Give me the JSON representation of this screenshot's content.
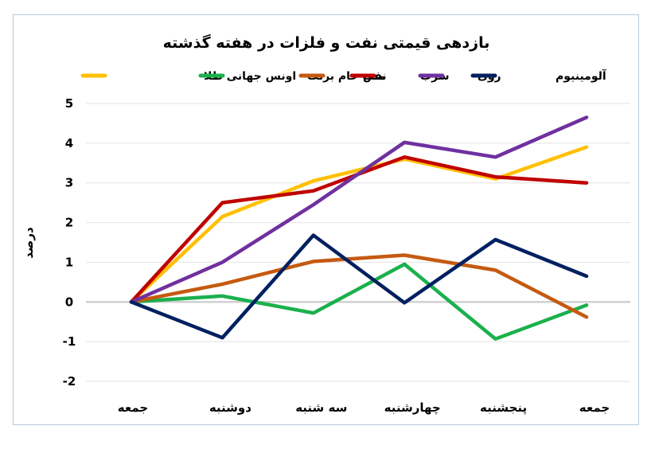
{
  "chart_data": {
    "type": "line",
    "title": "بازدهی قیمتی نفت و فلزات در هفته گذشته",
    "ylabel": "درصد",
    "xlabel": "",
    "categories": [
      "جمعه",
      "دوشنبه",
      "سه شنبه",
      "چهارشنبه",
      "پنجشنبه",
      "جمعه"
    ],
    "ylim": [
      -2,
      5
    ],
    "yticks": [
      5,
      4,
      3,
      2,
      1,
      0,
      -1,
      -2
    ],
    "ytick_labels": [
      "5",
      "4",
      "3",
      "2",
      "1",
      "0",
      "-1",
      "-2"
    ],
    "legend_position": "top",
    "gridlines": true,
    "series": [
      {
        "name": "اونس جهانی طلا",
        "color": "#FFC000",
        "values": [
          0,
          2.15,
          3.05,
          3.6,
          3.1,
          3.9
        ]
      },
      {
        "name": "نفت خام برنت",
        "color": "#1BB04D",
        "values": [
          0,
          0.15,
          -0.28,
          0.95,
          -0.93,
          -0.08
        ]
      },
      {
        "name": "مس",
        "color": "#C55A11",
        "values": [
          0,
          0.45,
          1.02,
          1.18,
          0.8,
          -0.38
        ]
      },
      {
        "name": "سرب",
        "color": "#C00000",
        "values": [
          0,
          2.5,
          2.8,
          3.65,
          3.15,
          3.0
        ]
      },
      {
        "name": "روی",
        "color": "#7030A0",
        "values": [
          0,
          1.0,
          2.45,
          4.02,
          3.65,
          4.65
        ]
      },
      {
        "name": "آلومینیوم",
        "color": "#002060",
        "values": [
          0,
          -0.9,
          1.68,
          -0.02,
          1.57,
          0.65
        ]
      }
    ]
  }
}
